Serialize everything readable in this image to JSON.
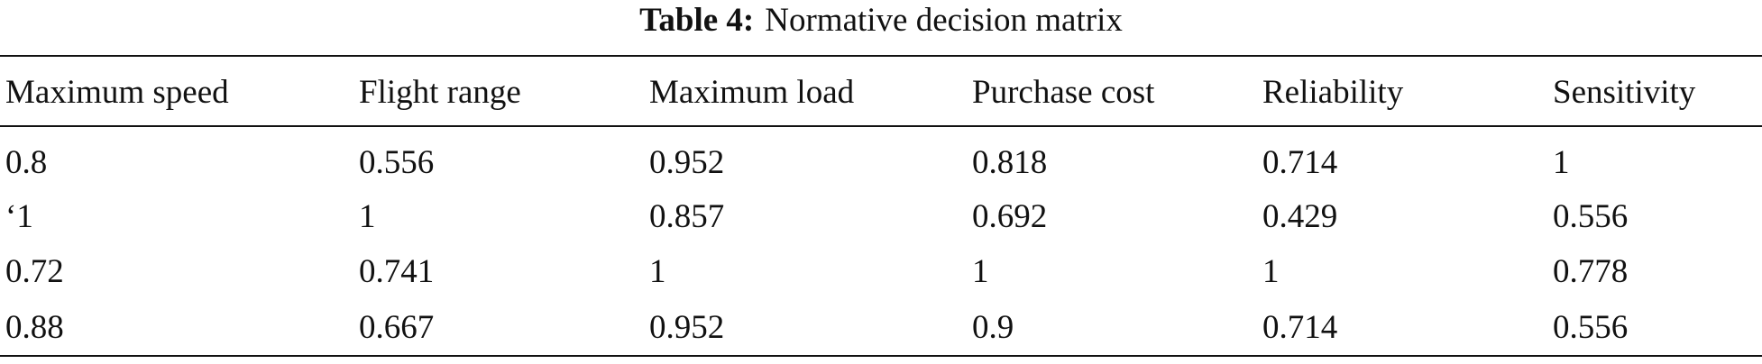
{
  "caption": {
    "label": "Table 4:",
    "title": "Normative decision matrix"
  },
  "table": {
    "header": [
      "Maximum speed",
      "Flight range",
      "Maximum load",
      "Purchase cost",
      "Reliability",
      "Sensitivity"
    ],
    "rows": [
      [
        "0.8",
        "0.556",
        "0.952",
        "0.818",
        "0.714",
        "1"
      ],
      [
        "‘1",
        "1",
        "0.857",
        "0.692",
        "0.429",
        "0.556"
      ],
      [
        "0.72",
        "0.741",
        "1",
        "1",
        "1",
        "0.778"
      ],
      [
        "0.88",
        "0.667",
        "0.952",
        "0.9",
        "0.714",
        "0.556"
      ]
    ]
  }
}
